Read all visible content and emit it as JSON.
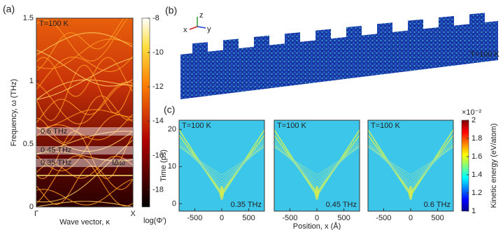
{
  "panel_labels": [
    "(a)",
    "(b)",
    "(c)"
  ],
  "panel_b": {
    "annotation": "T=100 K",
    "axis_labels": [
      "x",
      "y",
      "z"
    ]
  },
  "chart_data": [
    {
      "type": "heatmap",
      "colormap": "hot",
      "annotation": "T=100 K",
      "xlabel": "Wave vector, κ",
      "ylabel": "Frequency, ω (THz)",
      "xlim": [
        0,
        1
      ],
      "xticks": [
        {
          "value": 0,
          "label": "Γ"
        },
        {
          "value": 1,
          "label": "X"
        }
      ],
      "ylim": [
        0,
        1.5
      ],
      "yticks": [
        0,
        0.5,
        1,
        1.5
      ],
      "highlights": [
        {
          "value": 0.6,
          "label": "0.6 THz"
        },
        {
          "value": 0.45,
          "label": "0.45 THz"
        },
        {
          "value": 0.35,
          "label": "0.35 THz"
        }
      ],
      "band_annotation": "IΔω",
      "clim": [
        -19,
        -8
      ],
      "cticks": [
        -8,
        -10,
        -12,
        -14,
        -16,
        -18
      ],
      "clabel": "log(Φ′)"
    },
    {
      "type": "heatmap",
      "colormap": "jet",
      "annotation": "T=100 K",
      "subtitle": "0.35 THz",
      "ylabel": "Time (ps)",
      "xlim": [
        -790,
        790
      ],
      "xticks": [
        -500,
        0,
        500
      ],
      "ylim": [
        -2,
        22.5
      ],
      "yticks": [
        0,
        10,
        20
      ]
    },
    {
      "type": "heatmap",
      "colormap": "jet",
      "annotation": "T=100 K",
      "subtitle": "0.45 THz",
      "xlabel": "Position, x (Å)",
      "xlim": [
        -790,
        790
      ],
      "xticks": [
        -500,
        0,
        500
      ],
      "ylim": [
        -2,
        22.5
      ]
    },
    {
      "type": "heatmap",
      "colormap": "jet",
      "annotation": "T=100 K",
      "subtitle": "0.6 THz",
      "xlim": [
        -790,
        790
      ],
      "xticks": [
        -500,
        0,
        500
      ],
      "ylim": [
        -2,
        22.5
      ],
      "clim": [
        1,
        2
      ],
      "cticks": [
        1,
        1.2,
        1.4,
        1.6,
        1.8,
        2
      ],
      "clabel": "Kinetic energy (eV/atom)",
      "cexponent": "×10⁻²"
    }
  ]
}
